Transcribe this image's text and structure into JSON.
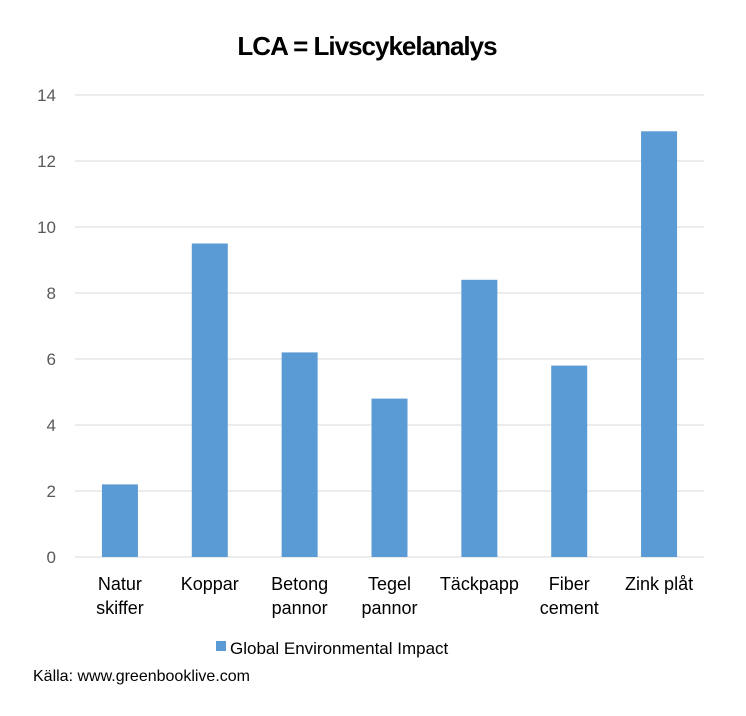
{
  "chart_data": {
    "type": "bar",
    "title": "LCA = Livscykelanalys",
    "categories": [
      [
        "Natur",
        "skiffer"
      ],
      [
        "Koppar"
      ],
      [
        "Betong",
        "pannor"
      ],
      [
        "Tegel",
        "pannor"
      ],
      [
        "Täckpapp"
      ],
      [
        "Fiber",
        "cement"
      ],
      [
        "Zink plåt"
      ]
    ],
    "series": [
      {
        "name": "Global Environmental Impact",
        "values": [
          2.2,
          9.5,
          6.2,
          4.8,
          8.4,
          5.8,
          12.9
        ],
        "color": "#5b9bd5"
      }
    ],
    "xlabel": "",
    "ylabel": "",
    "ylim": [
      0,
      14
    ],
    "yticks": [
      0,
      2,
      4,
      6,
      8,
      10,
      12,
      14
    ],
    "grid": true,
    "legend_position": "bottom"
  },
  "source": {
    "text": "Källa: www.greenbooklive.com"
  },
  "colors": {
    "bar": "#5b9bd5",
    "grid": "#d9d9d9",
    "axis_text": "#595959"
  }
}
